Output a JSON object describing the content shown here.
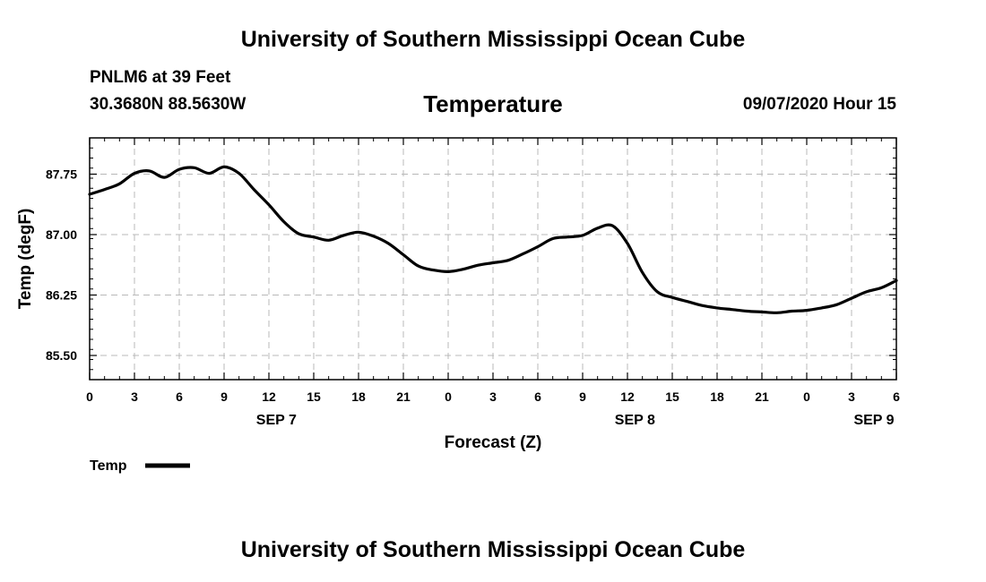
{
  "header": {
    "title": "University of Southern Mississippi Ocean Cube",
    "station": "PNLM6 at 39 Feet",
    "coords": "30.3680N 88.5630W",
    "timestamp": "09/07/2020 Hour 15"
  },
  "footer": {
    "title": "University of Southern Mississippi Ocean Cube"
  },
  "chart_data": {
    "type": "line",
    "title": "Temperature",
    "xlabel": "Forecast (Z)",
    "ylabel": "Temp (degF)",
    "x_unit": "hours",
    "xlim": [
      0,
      54
    ],
    "ylim": [
      85.2,
      88.2
    ],
    "x_ticks": [
      {
        "h": 0,
        "label": "0"
      },
      {
        "h": 3,
        "label": "3"
      },
      {
        "h": 6,
        "label": "6"
      },
      {
        "h": 9,
        "label": "9"
      },
      {
        "h": 12,
        "label": "12"
      },
      {
        "h": 15,
        "label": "15"
      },
      {
        "h": 18,
        "label": "18"
      },
      {
        "h": 21,
        "label": "21"
      },
      {
        "h": 24,
        "label": "0"
      },
      {
        "h": 27,
        "label": "3"
      },
      {
        "h": 30,
        "label": "6"
      },
      {
        "h": 33,
        "label": "9"
      },
      {
        "h": 36,
        "label": "12"
      },
      {
        "h": 39,
        "label": "15"
      },
      {
        "h": 42,
        "label": "18"
      },
      {
        "h": 45,
        "label": "21"
      },
      {
        "h": 48,
        "label": "0"
      },
      {
        "h": 51,
        "label": "3"
      },
      {
        "h": 54,
        "label": "6"
      }
    ],
    "date_labels": [
      {
        "h": 12.5,
        "label": "SEP 7"
      },
      {
        "h": 36.5,
        "label": "SEP 8"
      },
      {
        "h": 52.5,
        "label": "SEP 9"
      }
    ],
    "y_ticks": [
      85.5,
      86.25,
      87.0,
      87.75
    ],
    "y_tick_labels": [
      "85.50",
      "86.25",
      "87.00",
      "87.75"
    ],
    "grid": true,
    "legend": "bottom-left",
    "series": [
      {
        "name": "Temp",
        "color": "#000000",
        "x": [
          0,
          1,
          2,
          3,
          4,
          5,
          6,
          7,
          8,
          9,
          10,
          11,
          12,
          13,
          14,
          15,
          16,
          17,
          18,
          19,
          20,
          21,
          22,
          23,
          24,
          25,
          26,
          27,
          28,
          29,
          30,
          31,
          32,
          33,
          34,
          35,
          36,
          37,
          38,
          39,
          40,
          41,
          42,
          43,
          44,
          45,
          46,
          47,
          48,
          49,
          50,
          51,
          52,
          53,
          54
        ],
        "values": [
          87.5,
          87.56,
          87.63,
          87.76,
          87.79,
          87.71,
          87.81,
          87.83,
          87.76,
          87.84,
          87.76,
          87.56,
          87.37,
          87.16,
          87.01,
          86.97,
          86.93,
          86.99,
          87.03,
          86.98,
          86.89,
          86.75,
          86.61,
          86.56,
          86.54,
          86.57,
          86.62,
          86.65,
          86.68,
          86.76,
          86.85,
          86.95,
          86.97,
          86.99,
          87.08,
          87.11,
          86.89,
          86.53,
          86.29,
          86.22,
          86.17,
          86.12,
          86.09,
          86.07,
          86.05,
          86.04,
          86.03,
          86.05,
          86.06,
          86.09,
          86.13,
          86.21,
          86.29,
          86.34,
          86.43
        ]
      }
    ]
  }
}
